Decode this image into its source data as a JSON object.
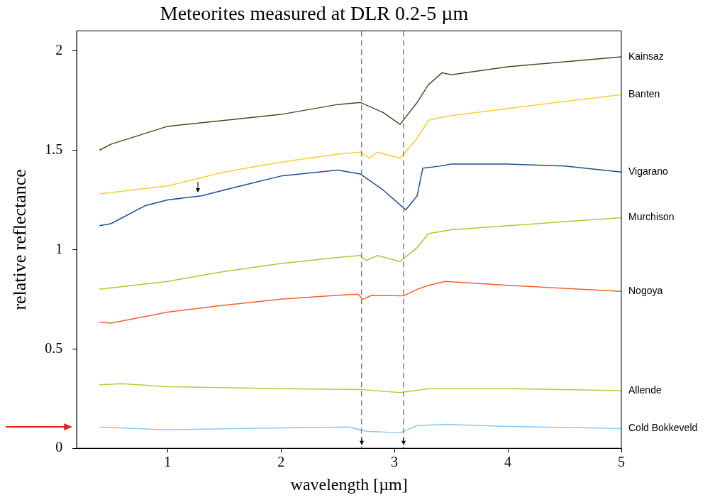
{
  "chart_data": {
    "type": "line",
    "title": "Meteorites measured at DLR 0.2-5 µm",
    "xlabel": "wavelength [µm]",
    "ylabel": "relative reflectance",
    "xlim": [
      0.2,
      5
    ],
    "xticks": [
      1,
      2,
      3,
      4,
      5
    ],
    "ylim": [
      0,
      2.1
    ],
    "yticks": [
      0,
      0.5,
      1,
      1.5,
      2
    ],
    "legend": false,
    "ref_lines": [
      {
        "axis": "x",
        "value": 2.71,
        "color": "#808080",
        "line_style": "dashed"
      },
      {
        "axis": "x",
        "value": 3.08,
        "color": "#808080",
        "line_style": "dashed"
      }
    ],
    "series": [
      {
        "name": "Kainsaz",
        "color": "#434d22",
        "x": [
          0.4,
          0.5,
          1.0,
          1.5,
          2.0,
          2.5,
          2.7,
          2.9,
          3.05,
          3.2,
          3.3,
          3.42,
          3.5,
          4.0,
          5.0
        ],
        "values": [
          1.5,
          1.53,
          1.62,
          1.65,
          1.68,
          1.73,
          1.74,
          1.69,
          1.63,
          1.74,
          1.83,
          1.89,
          1.88,
          1.92,
          1.97
        ]
      },
      {
        "name": "Banten",
        "color": "#f5d033",
        "x": [
          0.4,
          1.0,
          1.5,
          2.0,
          2.5,
          2.7,
          2.78,
          2.85,
          3.05,
          3.2,
          3.3,
          3.45,
          4.0,
          5.0
        ],
        "values": [
          1.28,
          1.32,
          1.39,
          1.44,
          1.48,
          1.49,
          1.46,
          1.49,
          1.46,
          1.56,
          1.65,
          1.67,
          1.71,
          1.78
        ]
      },
      {
        "name": "Vigarano",
        "color": "#1f4e8c",
        "x": [
          0.4,
          0.5,
          0.8,
          1.0,
          1.3,
          1.5,
          2.0,
          2.5,
          2.7,
          2.9,
          3.1,
          3.2,
          3.25,
          3.4,
          3.5,
          4.0,
          4.5,
          5.0
        ],
        "values": [
          1.12,
          1.13,
          1.22,
          1.25,
          1.27,
          1.3,
          1.37,
          1.4,
          1.38,
          1.3,
          1.2,
          1.27,
          1.41,
          1.42,
          1.43,
          1.43,
          1.42,
          1.39
        ]
      },
      {
        "name": "Murchison",
        "color": "#a8c83a",
        "x": [
          0.4,
          1.0,
          1.5,
          2.0,
          2.5,
          2.7,
          2.75,
          2.85,
          3.05,
          3.2,
          3.3,
          3.5,
          4.0,
          5.0
        ],
        "values": [
          0.8,
          0.84,
          0.89,
          0.93,
          0.96,
          0.97,
          0.945,
          0.97,
          0.94,
          1.01,
          1.08,
          1.1,
          1.12,
          1.16
        ]
      },
      {
        "name": "Nogoya",
        "color": "#f06030",
        "x": [
          0.4,
          0.5,
          1.0,
          1.5,
          2.0,
          2.5,
          2.68,
          2.72,
          2.8,
          3.08,
          3.2,
          3.3,
          3.45,
          4.0,
          5.0
        ],
        "values": [
          0.635,
          0.63,
          0.685,
          0.72,
          0.75,
          0.77,
          0.775,
          0.75,
          0.77,
          0.767,
          0.8,
          0.82,
          0.84,
          0.82,
          0.79
        ]
      },
      {
        "name": "Allende",
        "color": "#b5cc3a",
        "x": [
          0.4,
          0.6,
          1.0,
          2.0,
          2.7,
          3.05,
          3.3,
          4.0,
          5.0
        ],
        "values": [
          0.32,
          0.325,
          0.31,
          0.3,
          0.296,
          0.28,
          0.3,
          0.3,
          0.29
        ]
      },
      {
        "name": "Cold Bokkeveld",
        "color": "#8cc8f0",
        "x": [
          0.4,
          1.0,
          2.0,
          2.6,
          2.75,
          3.05,
          3.2,
          3.45,
          4.0,
          5.0
        ],
        "values": [
          0.107,
          0.093,
          0.103,
          0.107,
          0.086,
          0.078,
          0.114,
          0.12,
          0.11,
          0.1
        ]
      }
    ]
  }
}
